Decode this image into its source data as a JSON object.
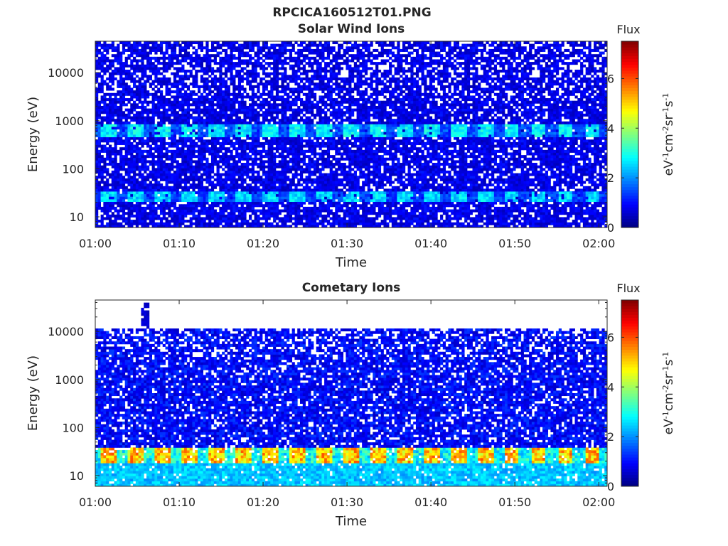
{
  "figure": {
    "file_title": "RPCICA160512T01.PNG"
  },
  "chart_data": [
    {
      "type": "heatmap",
      "title": "Solar Wind Ions",
      "xlabel": "Time",
      "ylabel": "Energy (eV)",
      "x_ticks": [
        "01:00",
        "01:10",
        "01:20",
        "01:30",
        "01:40",
        "01:50",
        "02:00"
      ],
      "xlim": [
        "01:00",
        "02:01"
      ],
      "y_scale": "log",
      "y_ticks": [
        10,
        100,
        1000,
        10000
      ],
      "y_tick_labels": [
        "10",
        "100",
        "1000",
        "10000"
      ],
      "ylim": [
        6,
        45000
      ],
      "colorbar": {
        "label": "Flux",
        "units": "eV-1cm-2sr-1s-1",
        "range": [
          0,
          7.5
        ],
        "ticks": [
          "0",
          "2",
          "4",
          "6"
        ],
        "colormap": "jet"
      },
      "features": [
        {
          "name": "solar wind beam",
          "energy_eV": [
            450,
            900
          ],
          "peak_flux": 3.2,
          "period_min": 3.2
        },
        {
          "name": "low-energy band",
          "energy_eV": [
            22,
            33
          ],
          "peak_flux": 3.0,
          "period_min": 3.2
        },
        {
          "name": "background",
          "energy_eV": [
            6,
            45000
          ],
          "mean_flux": 0.8
        }
      ]
    },
    {
      "type": "heatmap",
      "title": "Cometary Ions",
      "xlabel": "Time",
      "ylabel": "Energy (eV)",
      "x_ticks": [
        "01:00",
        "01:10",
        "01:20",
        "01:30",
        "01:40",
        "01:50",
        "02:00"
      ],
      "xlim": [
        "01:00",
        "02:01"
      ],
      "y_scale": "log",
      "y_ticks": [
        10,
        100,
        1000,
        10000
      ],
      "y_tick_labels": [
        "10",
        "100",
        "1000",
        "10000"
      ],
      "ylim": [
        6,
        45000
      ],
      "colorbar": {
        "label": "Flux",
        "units": "eV-1cm-2sr-1s-1",
        "range": [
          0,
          7.5
        ],
        "ticks": [
          "0",
          "2",
          "4",
          "6"
        ],
        "colormap": "jet"
      },
      "features": [
        {
          "name": "cometary ion band",
          "energy_eV": [
            18,
            40
          ],
          "peak_flux": 6.0,
          "period_min": 3.2
        },
        {
          "name": "low-energy tail",
          "energy_eV": [
            6,
            18
          ],
          "peak_flux": 2.8
        },
        {
          "name": "background",
          "energy_eV": [
            40,
            11000
          ],
          "mean_flux": 1.0
        },
        {
          "name": "high-energy spike",
          "time": "01:06",
          "energy_eV": [
            11000,
            38000
          ]
        }
      ]
    }
  ]
}
